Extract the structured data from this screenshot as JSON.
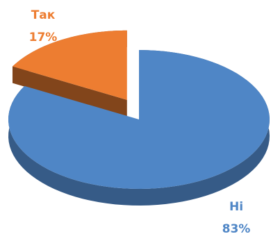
{
  "chart_data": {
    "type": "pie",
    "categories": [
      "Так",
      "Ні"
    ],
    "values": [
      17,
      83
    ],
    "value_labels": [
      "17%",
      "83%"
    ],
    "colors": [
      "#ed7d31",
      "#4f86c6"
    ]
  }
}
